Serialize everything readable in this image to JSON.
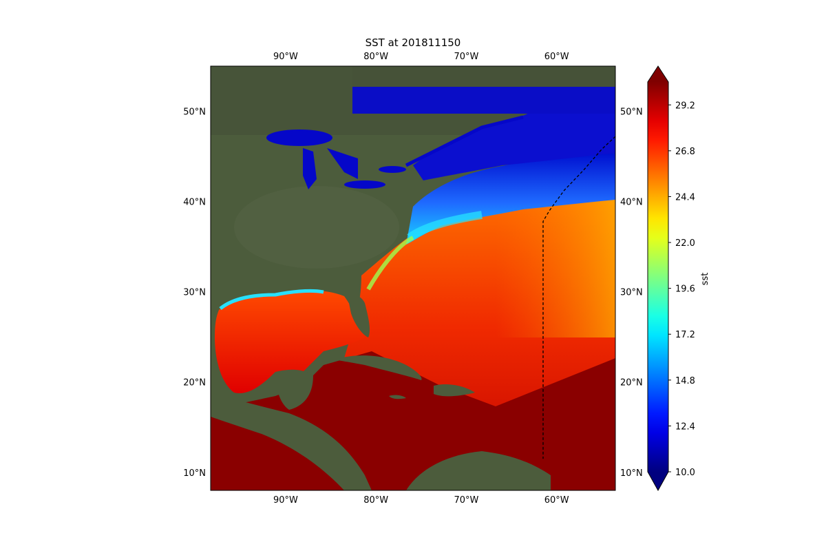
{
  "figure": {
    "title": "SST at 201811150"
  },
  "map": {
    "extent": {
      "lon_min": -98.3,
      "lon_max": -53.5,
      "lat_min": 8.0,
      "lat_max": 55.0
    },
    "lon_ticks": [
      {
        "value": -90,
        "label": "90°W"
      },
      {
        "value": -80,
        "label": "80°W"
      },
      {
        "value": -70,
        "label": "70°W"
      },
      {
        "value": -60,
        "label": "60°W"
      }
    ],
    "lat_ticks": [
      {
        "value": 10,
        "label": "10°N"
      },
      {
        "value": 20,
        "label": "20°N"
      },
      {
        "value": 30,
        "label": "30°N"
      },
      {
        "value": 40,
        "label": "40°N"
      },
      {
        "value": 50,
        "label": "50°N"
      }
    ],
    "track": [
      [
        -53.5,
        47.2
      ],
      [
        -55.0,
        45.8
      ],
      [
        -57.0,
        43.5
      ],
      [
        -59.2,
        41.2
      ],
      [
        -60.8,
        39.0
      ],
      [
        -61.5,
        37.8
      ],
      [
        -61.5,
        30.0
      ],
      [
        -61.5,
        20.0
      ],
      [
        -61.5,
        11.5
      ]
    ],
    "colors": {
      "land": "#4a5a3a",
      "ocean_border": "#5a6fa8",
      "track": "#000000"
    }
  },
  "colorbar": {
    "label": "sst",
    "vmin": 10.0,
    "vmax": 30.4,
    "ticks": [
      "10.0",
      "12.4",
      "14.8",
      "17.2",
      "19.6",
      "22.0",
      "24.4",
      "26.8",
      "29.2"
    ],
    "tick_values": [
      10.0,
      12.4,
      14.8,
      17.2,
      19.6,
      22.0,
      24.4,
      26.8,
      29.2
    ],
    "colormap": "jet",
    "extend": "both",
    "under_color": "#00007f",
    "over_color": "#7f0000"
  }
}
